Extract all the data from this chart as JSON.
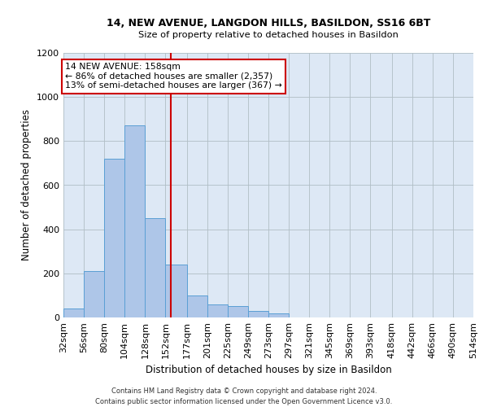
{
  "title1": "14, NEW AVENUE, LANGDON HILLS, BASILDON, SS16 6BT",
  "title2": "Size of property relative to detached houses in Basildon",
  "xlabel": "Distribution of detached houses by size in Basildon",
  "ylabel": "Number of detached properties",
  "footer": "Contains HM Land Registry data © Crown copyright and database right 2024.\nContains public sector information licensed under the Open Government Licence v3.0.",
  "annotation_title": "14 NEW AVENUE: 158sqm",
  "annotation_line1": "← 86% of detached houses are smaller (2,357)",
  "annotation_line2": "13% of semi-detached houses are larger (367) →",
  "property_size": 158,
  "bin_edges": [
    32,
    56,
    80,
    104,
    128,
    152,
    177,
    201,
    225,
    249,
    273,
    297,
    321,
    345,
    369,
    393,
    418,
    442,
    466,
    490,
    514
  ],
  "bar_heights": [
    40,
    210,
    720,
    870,
    450,
    240,
    100,
    60,
    50,
    30,
    20,
    0,
    0,
    0,
    0,
    0,
    0,
    0,
    0,
    0
  ],
  "bar_color": "#aec6e8",
  "bar_edge_color": "#5a9fd4",
  "line_color": "#cc0000",
  "annotation_box_color": "#ffffff",
  "annotation_box_edge": "#cc0000",
  "bg_color": "#dde8f5",
  "ylim": [
    0,
    1200
  ],
  "yticks": [
    0,
    200,
    400,
    600,
    800,
    1000,
    1200
  ]
}
